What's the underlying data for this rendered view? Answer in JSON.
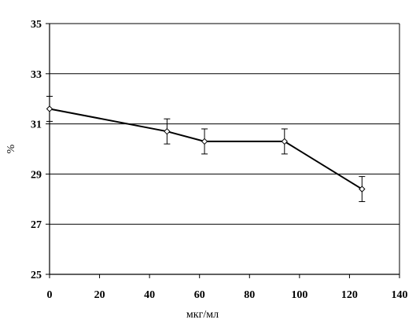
{
  "chart_data": {
    "type": "line",
    "title": "",
    "xlabel": "мкг/мл",
    "ylabel": "%",
    "xlim": [
      0,
      140
    ],
    "ylim": [
      25,
      35
    ],
    "xticks": [
      0,
      20,
      40,
      60,
      80,
      100,
      120,
      140
    ],
    "yticks": [
      25,
      27,
      29,
      31,
      33,
      35
    ],
    "grid": "horizontal",
    "legend": "none",
    "series": [
      {
        "x": [
          0,
          47,
          62,
          94,
          125
        ],
        "y": [
          31.6,
          30.7,
          30.3,
          30.3,
          28.4
        ],
        "error": [
          0.5,
          0.5,
          0.5,
          0.5,
          0.5
        ]
      }
    ],
    "colors": {
      "line": "#000000",
      "marker_fill": "#ffffff",
      "grid": "#000000"
    }
  }
}
